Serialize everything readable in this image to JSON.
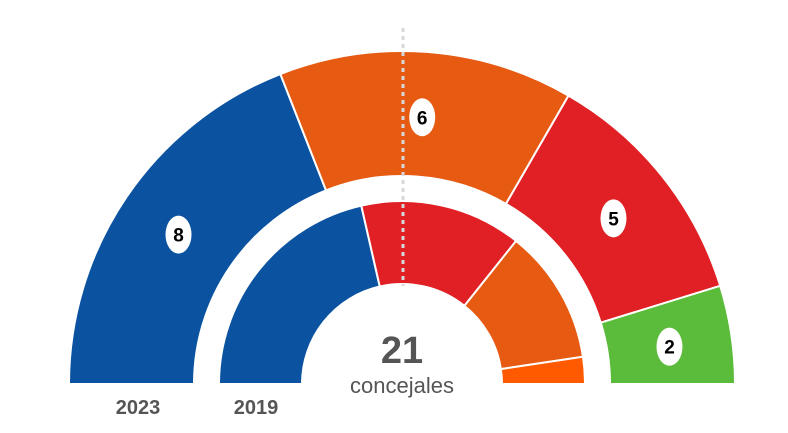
{
  "chart_data": {
    "type": "parliament-hemicycle",
    "total": "21",
    "total_label": "concejales",
    "majority_line": true,
    "rings": [
      {
        "year": "2023",
        "seats": [
          {
            "value": 8,
            "color": "#0b52a0",
            "label_shown": true
          },
          {
            "value": 6,
            "color": "#e65a12",
            "label_shown": true
          },
          {
            "value": 5,
            "color": "#e02024",
            "label_shown": true
          },
          {
            "value": 2,
            "color": "#5bbb3a",
            "label_shown": true
          }
        ]
      },
      {
        "year": "2019",
        "seats": [
          {
            "value": 9,
            "color": "#0b52a0",
            "label_shown": false
          },
          {
            "value": 6,
            "color": "#e02024",
            "label_shown": false
          },
          {
            "value": 5,
            "color": "#e65a12",
            "label_shown": false
          },
          {
            "value": 1,
            "color": "#ff5a00",
            "label_shown": false
          }
        ]
      }
    ]
  }
}
